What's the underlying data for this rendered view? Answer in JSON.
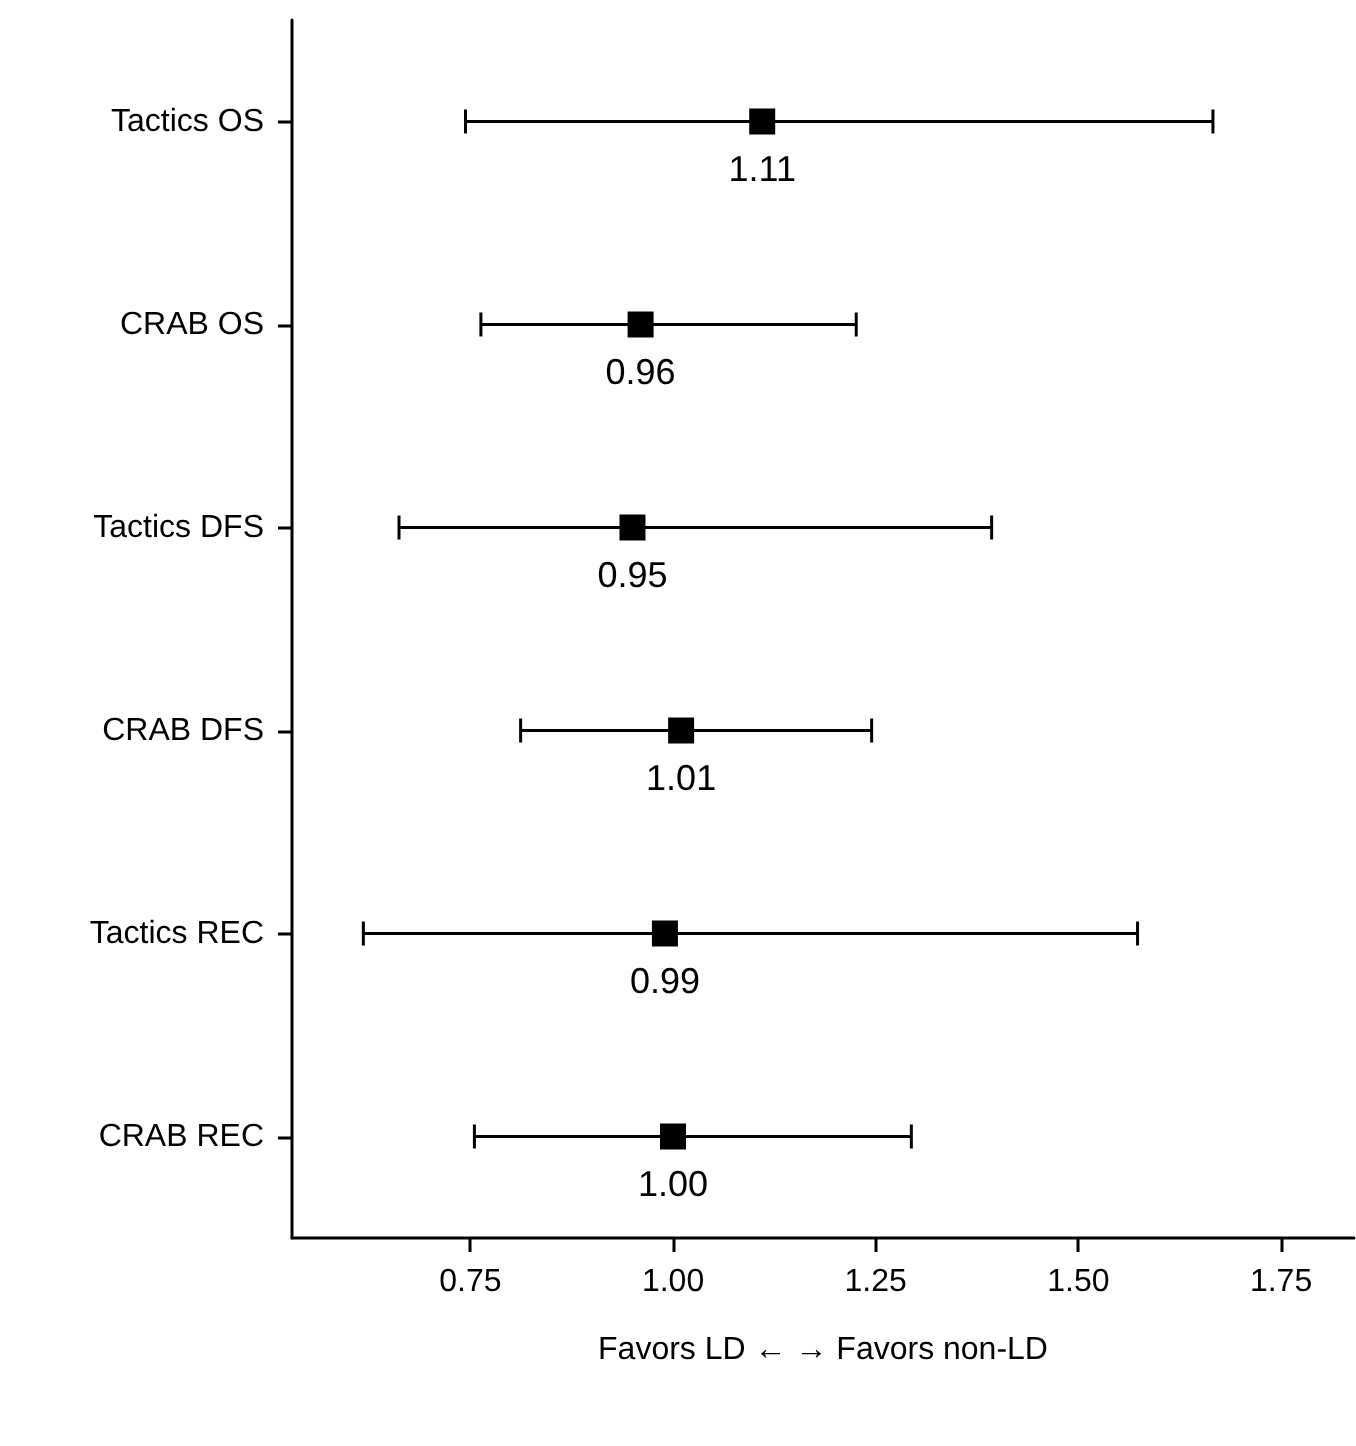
{
  "chart_data": {
    "type": "scatter",
    "orientation": "horizontal",
    "xlabel": "Favors LD ← → Favors non-LD",
    "categories": [
      "Tactics OS",
      "CRAB OS",
      "Tactics DFS",
      "CRAB DFS",
      "Tactics REC",
      "CRAB REC"
    ],
    "values": [
      1.11,
      0.96,
      0.95,
      1.01,
      0.99,
      1.0
    ],
    "value_labels": [
      "1.11",
      "0.96",
      "0.95",
      "1.01",
      "0.99",
      "1.00"
    ],
    "errors": [
      [
        0.744,
        1.666
      ],
      [
        0.763,
        1.226
      ],
      [
        0.662,
        1.393
      ],
      [
        0.812,
        1.245
      ],
      [
        0.618,
        1.573
      ],
      [
        0.755,
        1.294
      ]
    ],
    "color": "#000000",
    "marker": "square",
    "xlim": [
      0.53,
      1.84
    ],
    "xticks": [
      {
        "value": 0.75,
        "label": "0.75"
      },
      {
        "value": 1.0,
        "label": "1.00"
      },
      {
        "value": 1.25,
        "label": "1.25"
      },
      {
        "value": 1.5,
        "label": "1.50"
      },
      {
        "value": 1.75,
        "label": "1.75"
      }
    ]
  }
}
